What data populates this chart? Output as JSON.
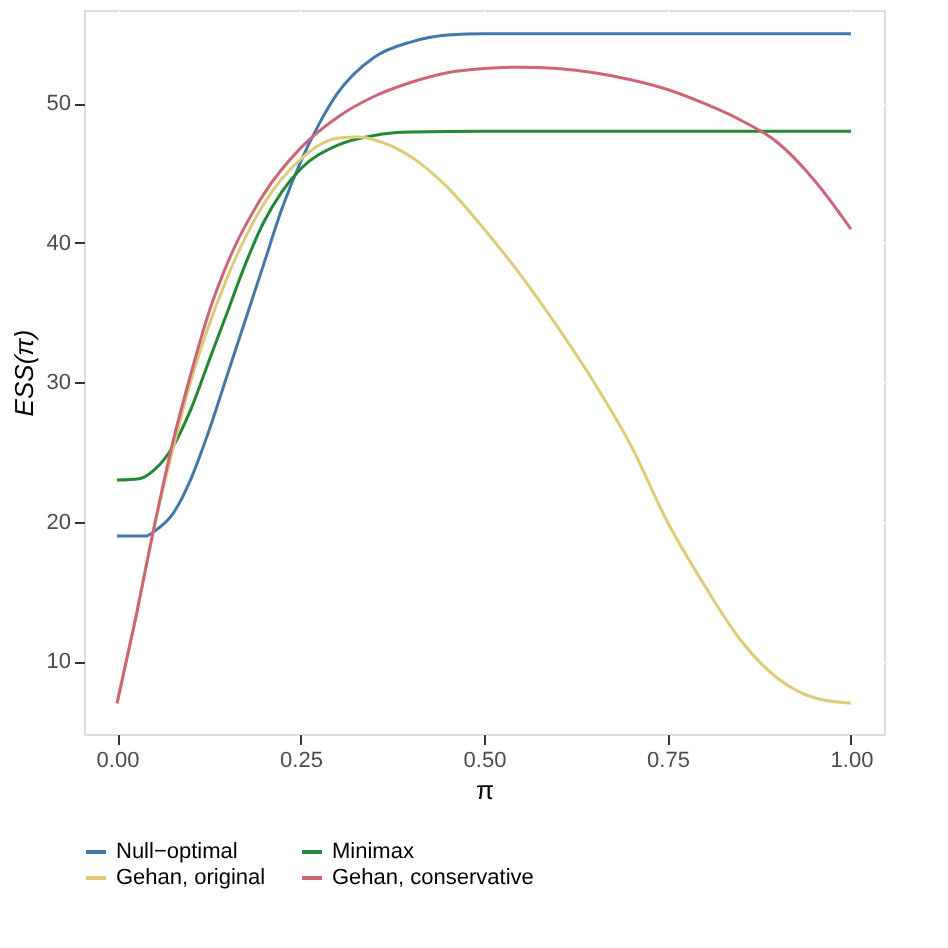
{
  "chart_data": {
    "type": "line",
    "xlabel": "π",
    "ylabel": "ESS(π)",
    "xlim": [
      -0.045,
      1.045
    ],
    "ylim": [
      4.8,
      56.7
    ],
    "xticks": [
      {
        "value": 0,
        "label": "0.00"
      },
      {
        "value": 0.25,
        "label": "0.25"
      },
      {
        "value": 0.5,
        "label": "0.50"
      },
      {
        "value": 0.75,
        "label": "0.75"
      },
      {
        "value": 1,
        "label": "1.00"
      }
    ],
    "yticks": [
      10,
      20,
      30,
      40,
      50
    ],
    "grid": true,
    "legend": "bottom",
    "marker": "none",
    "line_style": "solid",
    "series": [
      {
        "name": "Null−optimal",
        "color": "#4477aa",
        "x": [
          0,
          0.04,
          0.05,
          0.075,
          0.1,
          0.125,
          0.15,
          0.175,
          0.2,
          0.225,
          0.25,
          0.275,
          0.3,
          0.35,
          0.4,
          0.45,
          0.5,
          1
        ],
        "values": [
          19,
          19,
          19.3,
          20.5,
          23,
          26.5,
          30.5,
          34.5,
          38.5,
          42.5,
          45.8,
          48.5,
          50.7,
          53.3,
          54.4,
          54.9,
          55,
          55
        ]
      },
      {
        "name": "Minimax",
        "color": "#228833",
        "x": [
          0,
          0.03,
          0.05,
          0.075,
          0.1,
          0.125,
          0.15,
          0.175,
          0.2,
          0.225,
          0.25,
          0.3,
          0.35,
          0.4,
          0.5,
          1
        ],
        "values": [
          23,
          23.1,
          23.7,
          25.3,
          28,
          31.5,
          35,
          38.5,
          41.5,
          43.7,
          45.3,
          47,
          47.7,
          47.95,
          48,
          48
        ]
      },
      {
        "name": "Gehan, original",
        "color": "#ddcc77",
        "x": [
          0,
          0.025,
          0.05,
          0.075,
          0.1,
          0.15,
          0.2,
          0.25,
          0.3,
          0.33,
          0.35,
          0.4,
          0.45,
          0.5,
          0.55,
          0.6,
          0.65,
          0.7,
          0.75,
          0.8,
          0.85,
          0.9,
          0.95,
          1
        ],
        "values": [
          7,
          13,
          19.5,
          25,
          30,
          37.5,
          42.8,
          46,
          47.5,
          47.6,
          47.4,
          46.2,
          44,
          41,
          37.7,
          34,
          30,
          25.5,
          20,
          15.5,
          11.5,
          8.8,
          7.4,
          7
        ]
      },
      {
        "name": "Gehan, conservative",
        "color": "#cc6677",
        "x": [
          0,
          0.025,
          0.05,
          0.075,
          0.1,
          0.125,
          0.15,
          0.2,
          0.25,
          0.3,
          0.35,
          0.4,
          0.45,
          0.5,
          0.55,
          0.6,
          0.65,
          0.7,
          0.75,
          0.8,
          0.85,
          0.9,
          0.95,
          1
        ],
        "values": [
          7,
          13,
          19.5,
          25.5,
          30.5,
          35,
          38.5,
          43.5,
          46.8,
          49,
          50.5,
          51.5,
          52.2,
          52.5,
          52.6,
          52.5,
          52.2,
          51.7,
          51,
          50,
          48.8,
          47.2,
          44.5,
          41
        ]
      }
    ]
  }
}
